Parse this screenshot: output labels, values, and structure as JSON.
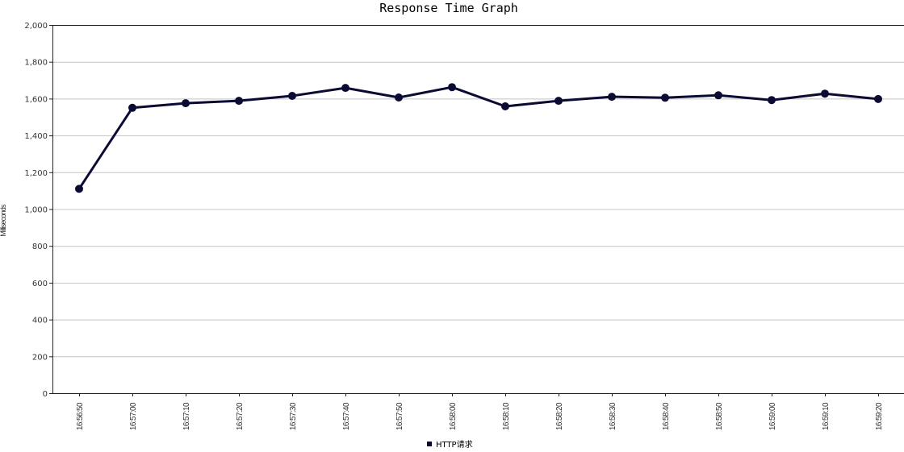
{
  "chart_data": {
    "type": "line",
    "title": "Response Time Graph",
    "xlabel": "",
    "ylabel": "Milliseconds",
    "ylim": [
      0,
      2000
    ],
    "yticks": [
      0,
      200,
      400,
      600,
      800,
      1000,
      1200,
      1400,
      1600,
      1800,
      2000
    ],
    "ytick_labels": [
      "0",
      "200",
      "400",
      "600",
      "800",
      "1,000",
      "1,200",
      "1,400",
      "1,600",
      "1,800",
      "2,000"
    ],
    "grid": "horizontal",
    "legend_position": "bottom-center",
    "categories": [
      "16:56:50",
      "16:57:00",
      "16:57:10",
      "16:57:20",
      "16:57:30",
      "16:57:40",
      "16:57:50",
      "16:58:00",
      "16:58:10",
      "16:58:20",
      "16:58:30",
      "16:58:40",
      "16:58:50",
      "16:59:00",
      "16:59:10",
      "16:59:20"
    ],
    "series": [
      {
        "name": "HTTP请求",
        "color": "#0b0a33",
        "values": [
          1110,
          1550,
          1575,
          1588,
          1615,
          1658,
          1606,
          1662,
          1558,
          1588,
          1610,
          1605,
          1618,
          1592,
          1627,
          1598
        ]
      }
    ]
  }
}
